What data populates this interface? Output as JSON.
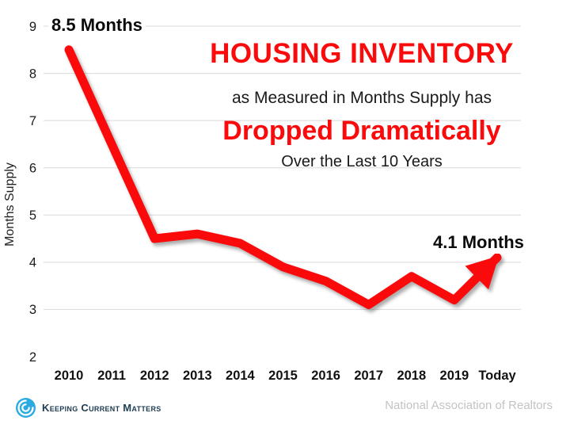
{
  "title": {
    "line1": "HOUSING INVENTORY",
    "line2": "as Measured in Months Supply has",
    "line3": "Dropped Dramatically",
    "line4": "Over the Last 10 Years"
  },
  "footer": {
    "logo_text": "Keeping Current Matters",
    "source": "National Association of Realtors"
  },
  "colors": {
    "accent_red": "#FB0A0C",
    "grid_gray": "#D9D9D9",
    "logo_blue": "#29ABE2",
    "logo_text_navy": "#1D3C52",
    "source_gray": "#C3C3C3"
  },
  "chart_data": {
    "type": "line",
    "title": "HOUSING INVENTORY as Measured in Months Supply has Dropped Dramatically Over the Last 10 Years",
    "categories": [
      "2010",
      "2011",
      "2012",
      "2013",
      "2014",
      "2015",
      "2016",
      "2017",
      "2018",
      "2019",
      "Today"
    ],
    "values": [
      8.5,
      6.5,
      4.5,
      4.6,
      4.4,
      3.9,
      3.6,
      3.1,
      3.7,
      3.2,
      4.1
    ],
    "xlabel": "",
    "ylabel": "Months Supply",
    "ylim": [
      2,
      9
    ],
    "yticks": [
      2,
      3,
      4,
      5,
      6,
      7,
      8,
      9
    ],
    "grid": true,
    "legend": false,
    "line_color": "#FB0A0C",
    "line_width": 11,
    "arrow_end": true,
    "annotations": [
      {
        "text": "8.5 Months",
        "category": "2010",
        "value": 8.5
      },
      {
        "text": "4.1 Months",
        "category": "Today",
        "value": 4.1
      }
    ],
    "source": "National Association of Realtors"
  }
}
